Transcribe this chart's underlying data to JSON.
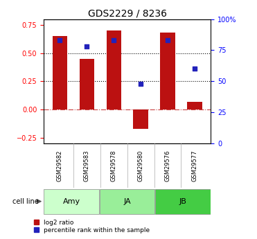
{
  "title": "GDS2229 / 8236",
  "categories": [
    "GSM29582",
    "GSM29583",
    "GSM29578",
    "GSM29580",
    "GSM29576",
    "GSM29577"
  ],
  "log2_ratio": [
    0.65,
    0.45,
    0.7,
    -0.17,
    0.68,
    0.07
  ],
  "percentile_rank": [
    83,
    78,
    83,
    48,
    83,
    60
  ],
  "cell_line_groups": [
    {
      "label": "Amy",
      "indices": [
        0,
        1
      ],
      "color": "#ccffcc"
    },
    {
      "label": "JA",
      "indices": [
        2,
        3
      ],
      "color": "#99ee99"
    },
    {
      "label": "JB",
      "indices": [
        4,
        5
      ],
      "color": "#44cc44"
    }
  ],
  "bar_color": "#bb1111",
  "dot_color": "#2222bb",
  "ylim_left": [
    -0.3,
    0.8
  ],
  "ylim_right": [
    0,
    100
  ],
  "yticks_left": [
    -0.25,
    0.0,
    0.25,
    0.5,
    0.75
  ],
  "yticks_right": [
    0,
    25,
    50,
    75,
    100
  ],
  "dotted_lines": [
    0.25,
    0.5
  ],
  "bar_width": 0.55,
  "bg_color": "#ffffff"
}
